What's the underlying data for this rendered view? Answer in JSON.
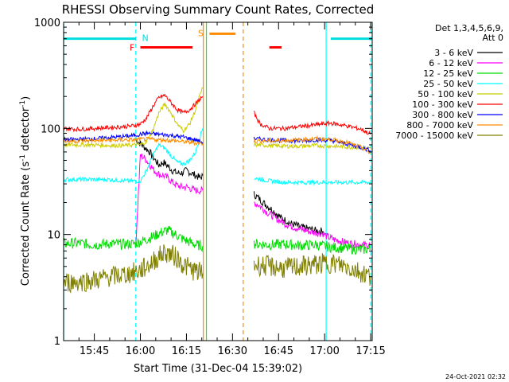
{
  "chart_data": {
    "type": "line",
    "title": "RHESSI Observing Summary Count Rates, Corrected",
    "xlabel": "Start Time (31-Dec-04 15:39:02)",
    "ylabel_main": "Corrected Count Rate (s",
    "ylabel_sup1": "-1",
    "ylabel_mid": " detector",
    "ylabel_sup2": "-1",
    "ylabel_end": ")",
    "y_scale": "log",
    "ylim": [
      1,
      1000
    ],
    "xlim_minutes": [
      -25.0,
      75.5
    ],
    "x_ticks": [
      {
        "m": -15,
        "label": "15:45"
      },
      {
        "m": 0,
        "label": "16:00"
      },
      {
        "m": 15,
        "label": "16:15"
      },
      {
        "m": 30,
        "label": "16:30"
      },
      {
        "m": 45,
        "label": "16:45"
      },
      {
        "m": 60,
        "label": "17:00"
      },
      {
        "m": 75,
        "label": "17:15"
      }
    ],
    "y_ticks": [
      {
        "v": 1,
        "label": "1"
      },
      {
        "v": 10,
        "label": "10"
      },
      {
        "v": 100,
        "label": "100"
      },
      {
        "v": 1000,
        "label": "1000"
      }
    ],
    "legend_header": [
      "Det 1,3,4,5,6,9,",
      "Att 0"
    ],
    "series": [
      {
        "name": "3 - 6 keV",
        "color": "#000000",
        "segments": [
          {
            "x": [
              -1.5,
              0.0,
              1.5,
              3.0,
              4.5,
              6.0,
              7.5,
              9.0,
              10.5,
              12.0,
              13.5,
              15.0,
              16.5,
              18.0,
              19.5,
              20.3
            ],
            "y": [
              78,
              72,
              66,
              60,
              52,
              45,
              48,
              44,
              40,
              38,
              38,
              40,
              38,
              36,
              34,
              36
            ]
          },
          {
            "x": [
              37.0,
              38.5,
              40.0,
              41.5,
              43.0,
              44.5,
              46.0,
              47.5,
              49.0,
              50.5,
              52.0,
              53.5,
              55.0,
              56.5,
              58.0,
              59.5
            ],
            "y": [
              24,
              22,
              20,
              18.5,
              17,
              15.5,
              14.2,
              13.5,
              12.7,
              12.3,
              11.8,
              11.5,
              11.3,
              11,
              10.8,
              10.8
            ]
          }
        ]
      },
      {
        "name": "6 - 12 keV",
        "color": "#ff00ff",
        "segments": [
          {
            "x": [
              -1.5,
              0.0,
              1.5,
              3.0,
              4.5,
              6.0,
              7.5,
              9.0,
              10.5,
              12.0,
              13.5,
              15.0,
              16.5,
              18.0,
              19.5,
              20.3
            ],
            "y": [
              8,
              56,
              52,
              46,
              40,
              37,
              36,
              34,
              31,
              29,
              28,
              28,
              27,
              26,
              26,
              26
            ]
          },
          {
            "x": [
              37.0,
              38.5,
              40.0,
              41.5,
              43.0,
              44.5,
              46.0,
              47.5,
              49.0,
              50.5,
              52.0,
              53.5,
              55.0,
              56.5,
              58.0,
              59.5,
              61.0,
              63.0,
              65.0,
              67.0,
              69.0,
              71.0,
              73.0,
              75.0
            ],
            "y": [
              20,
              19,
              17.5,
              16,
              15,
              14,
              13.2,
              12.5,
              12,
              11.6,
              11.2,
              11,
              10.7,
              10.5,
              10.3,
              10.2,
              9.5,
              9.0,
              8.7,
              8.4,
              8.2,
              8.1,
              8.0,
              8.0
            ]
          }
        ]
      },
      {
        "name": "12 - 25 keV",
        "color": "#00dd00",
        "segments": [
          {
            "x": [
              -25.0,
              -20.0,
              -15.0,
              -10.0,
              -5.0,
              -2.0,
              0.0,
              2.0,
              4.0,
              6.0,
              8.0,
              9.0,
              10.0,
              12.0,
              14.0,
              16.0,
              18.0,
              20.3
            ],
            "y": [
              8.2,
              8.3,
              8.0,
              8.2,
              8.1,
              8.2,
              8.5,
              9.0,
              9.5,
              10.2,
              10.8,
              11.0,
              10.5,
              9.8,
              9.0,
              8.5,
              8.0,
              7.8
            ]
          },
          {
            "x": [
              37.0,
              42.0,
              47.0,
              52.0,
              57.0,
              62.0,
              67.0,
              72.0,
              75.0
            ],
            "y": [
              8.2,
              8.0,
              8.1,
              7.9,
              8.0,
              7.6,
              7.4,
              7.2,
              7.3
            ]
          }
        ]
      },
      {
        "name": "25 - 50 keV",
        "color": "#00ffff",
        "segments": [
          {
            "x": [
              -25.0,
              -20.0,
              -15.0,
              -10.0,
              -5.0,
              -2.0,
              0.0,
              2.0,
              4.0,
              6.0,
              8.0,
              10.0,
              12.0,
              14.0,
              16.0,
              18.0,
              19.5,
              20.3
            ],
            "y": [
              33,
              33,
              33,
              33,
              32,
              32,
              32,
              40,
              55,
              70,
              65,
              55,
              48,
              46,
              50,
              60,
              85,
              100
            ]
          },
          {
            "x": [
              37.0,
              42.0,
              47.0,
              52.0,
              57.0,
              62.0,
              67.0,
              72.0,
              75.0
            ],
            "y": [
              34,
              32,
              31,
              31,
              31,
              31,
              31,
              31,
              31
            ]
          }
        ]
      },
      {
        "name": "50 - 100 keV",
        "color": "#cccc00",
        "segments": [
          {
            "x": [
              -25.0,
              -20.0,
              -15.0,
              -10.0,
              -5.0,
              -2.0,
              0.0,
              2.0,
              4.0,
              6.0,
              8.0,
              10.0,
              12.0,
              14.0,
              16.0,
              18.0,
              19.5,
              20.3
            ],
            "y": [
              70,
              70,
              70,
              69,
              69,
              70,
              70,
              75,
              95,
              140,
              170,
              140,
              110,
              95,
              110,
              150,
              210,
              240
            ]
          },
          {
            "x": [
              37.0,
              42.0,
              47.0,
              52.0,
              57.0,
              62.0,
              67.0,
              72.0,
              75.0
            ],
            "y": [
              70,
              69,
              68,
              68,
              69,
              68,
              67,
              66,
              64
            ]
          }
        ]
      },
      {
        "name": "100 - 300 keV",
        "color": "#ff0000",
        "segments": [
          {
            "x": [
              -25.0,
              -20.0,
              -15.0,
              -10.0,
              -5.0,
              -2.0,
              0.0,
              2.0,
              4.0,
              6.0,
              8.0,
              10.0,
              12.0,
              14.0,
              16.0,
              18.0,
              19.5,
              20.3
            ],
            "y": [
              100,
              98,
              100,
              102,
              104,
              106,
              110,
              125,
              160,
              195,
              205,
              175,
              150,
              140,
              150,
              170,
              190,
              200
            ]
          },
          {
            "x": [
              37.0,
              39.0,
              42.0,
              47.0,
              52.0,
              57.0,
              62.0,
              67.0,
              72.0,
              75.0
            ],
            "y": [
              140,
              110,
              100,
              100,
              104,
              108,
              112,
              106,
              98,
              88
            ]
          }
        ]
      },
      {
        "name": "300 - 800 keV",
        "color": "#0000ff",
        "segments": [
          {
            "x": [
              -25.0,
              -20.0,
              -15.0,
              -10.0,
              -5.0,
              -2.0,
              0.0,
              2.0,
              4.0,
              6.0,
              8.0,
              10.0,
              12.0,
              14.0,
              16.0,
              18.0,
              20.3
            ],
            "y": [
              78,
              79,
              80,
              82,
              84,
              86,
              88,
              90,
              89,
              88,
              87,
              86,
              84,
              83,
              80,
              78,
              74
            ]
          },
          {
            "x": [
              37.0,
              42.0,
              47.0,
              52.0,
              57.0,
              62.0,
              67.0,
              72.0,
              75.0
            ],
            "y": [
              80,
              78,
              77,
              76,
              78,
              77,
              72,
              66,
              62
            ]
          }
        ]
      },
      {
        "name": "800 - 7000 keV",
        "color": "#ff8c00",
        "segments": [
          {
            "x": [
              -25.0,
              -20.0,
              -15.0,
              -10.0,
              -5.0,
              -2.0,
              0.0,
              2.0,
              4.0,
              6.0,
              8.0,
              10.0,
              12.0,
              14.0,
              16.0,
              18.0,
              20.3
            ],
            "y": [
              76,
              76,
              77,
              77,
              78,
              78,
              79,
              79,
              79,
              78,
              78,
              77,
              76,
              75,
              74,
              73,
              72
            ]
          },
          {
            "x": [
              37.0,
              42.0,
              47.0,
              52.0,
              57.0,
              62.0,
              67.0,
              72.0,
              75.0
            ],
            "y": [
              76,
              76,
              77,
              78,
              80,
              79,
              74,
              66,
              58
            ]
          }
        ]
      },
      {
        "name": "7000 - 15000 keV",
        "color": "#808000",
        "segments": [
          {
            "x": [
              -25.0,
              -20.0,
              -15.0,
              -10.0,
              -5.0,
              -2.0,
              0.0,
              2.0,
              4.0,
              6.0,
              8.0,
              10.0,
              12.0,
              14.0,
              16.0,
              18.0,
              20.3
            ],
            "y": [
              3.5,
              3.6,
              3.7,
              4.0,
              4.2,
              4.4,
              4.6,
              5.0,
              5.5,
              6.2,
              6.8,
              6.5,
              6.0,
              5.2,
              4.8,
              4.5,
              4.3
            ]
          },
          {
            "x": [
              37.0,
              42.0,
              47.0,
              52.0,
              57.0,
              62.0,
              67.0,
              72.0,
              75.0
            ],
            "y": [
              5.2,
              5.0,
              4.8,
              5.0,
              5.2,
              5.4,
              5.0,
              4.4,
              4.0
            ]
          }
        ]
      }
    ],
    "annotations": {
      "flags": [
        {
          "label": "N",
          "color": "#00dddd",
          "y": 700,
          "x_ranges": [
            [
              -25.0,
              -1.5
            ],
            [
              62.0,
              75.5
            ]
          ]
        },
        {
          "label": "F",
          "color": "#ff0000",
          "y": 580,
          "x_ranges": [
            [
              0.0,
              17.0
            ],
            [
              42.0,
              46.0
            ]
          ]
        },
        {
          "label": "S",
          "color": "#ff8c00",
          "y": 780,
          "x_ranges": [
            [
              22.5,
              31.0
            ]
          ]
        }
      ],
      "vlines": [
        {
          "x": -25.0,
          "color": "#00ffff",
          "dashed": false
        },
        {
          "x": -1.5,
          "color": "#00ffff",
          "dashed": true
        },
        {
          "x": 20.5,
          "color": "#ff8c00",
          "dashed": false
        },
        {
          "x": 21.5,
          "color": "#00ff00",
          "dashed": false
        },
        {
          "x": 33.5,
          "color": "#ff8c00",
          "dashed": true
        },
        {
          "x": 60.5,
          "color": "#00ffff",
          "dashed": false
        },
        {
          "x": 75.0,
          "color": "#00ffff",
          "dashed": true
        }
      ]
    },
    "footer_timestamp": "24-Oct-2021 02:32"
  }
}
